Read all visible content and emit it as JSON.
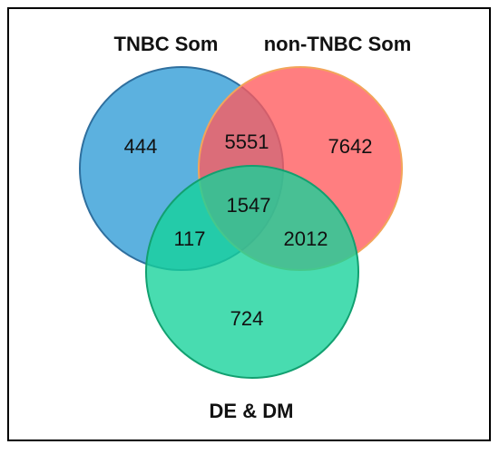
{
  "chart_data": {
    "type": "venn",
    "sets": [
      {
        "name": "TNBC Som",
        "color": "#2e9bd6"
      },
      {
        "name": "non-TNBC Som",
        "color": "#ff5a5c"
      },
      {
        "name": "DE & DM",
        "color": "#14d29a"
      }
    ],
    "values": [
      444,
      5551,
      7642,
      1547,
      117,
      2012,
      724
    ]
  }
}
